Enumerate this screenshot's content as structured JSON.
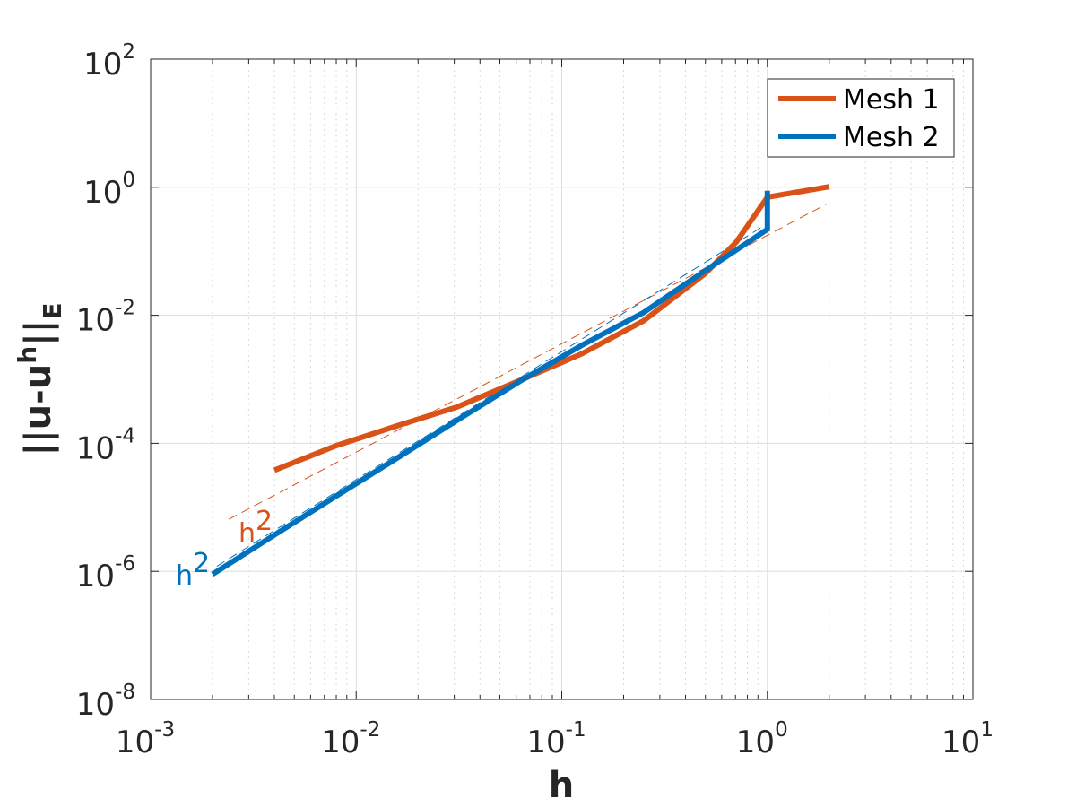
{
  "chart_data": {
    "type": "line",
    "xscale": "log",
    "yscale": "log",
    "xlim": [
      0.001,
      10
    ],
    "ylim": [
      1e-08,
      100
    ],
    "xlabel": "h",
    "ylabel": "||u-u^h||_E",
    "grid": true,
    "x_ticks": [
      {
        "base": "10",
        "exp": "-3"
      },
      {
        "base": "10",
        "exp": "-2"
      },
      {
        "base": "10",
        "exp": "-1"
      },
      {
        "base": "10",
        "exp": "0"
      },
      {
        "base": "10",
        "exp": "1"
      }
    ],
    "y_ticks": [
      {
        "base": "10",
        "exp": "-8"
      },
      {
        "base": "10",
        "exp": "-6"
      },
      {
        "base": "10",
        "exp": "-4"
      },
      {
        "base": "10",
        "exp": "-2"
      },
      {
        "base": "10",
        "exp": "0"
      },
      {
        "base": "10",
        "exp": "2"
      }
    ],
    "legend_position": "top-right",
    "series": [
      {
        "name": "Mesh 1",
        "color": "#D95319",
        "x": [
          0.004,
          0.008,
          0.016,
          0.031,
          0.0625,
          0.125,
          0.25,
          0.5,
          0.707,
          1.0,
          2.0
        ],
        "y": [
          3.8e-05,
          9.2e-05,
          0.00019,
          0.00037,
          0.00096,
          0.0025,
          0.0082,
          0.045,
          0.14,
          0.7,
          1.02
        ]
      },
      {
        "name": "Mesh 2",
        "color": "#0072BD",
        "x": [
          0.002,
          0.004,
          0.008,
          0.016,
          0.031,
          0.0625,
          0.125,
          0.25,
          0.5,
          1.0,
          1.0
        ],
        "y": [
          9e-07,
          3.7e-06,
          1.5e-05,
          6e-05,
          0.00023,
          0.00093,
          0.0034,
          0.011,
          0.05,
          0.22,
          0.88
        ]
      }
    ],
    "reference_lines": [
      {
        "label_base": "h",
        "label_exp": "2",
        "color": "#D95319",
        "x": [
          0.0024,
          1.95
        ],
        "y": [
          6.5e-06,
          0.55
        ]
      },
      {
        "label_base": "h",
        "label_exp": "2",
        "color": "#0072BD",
        "x": [
          0.0021,
          1.0
        ],
        "y": [
          1.2e-06,
          0.27
        ]
      }
    ]
  }
}
